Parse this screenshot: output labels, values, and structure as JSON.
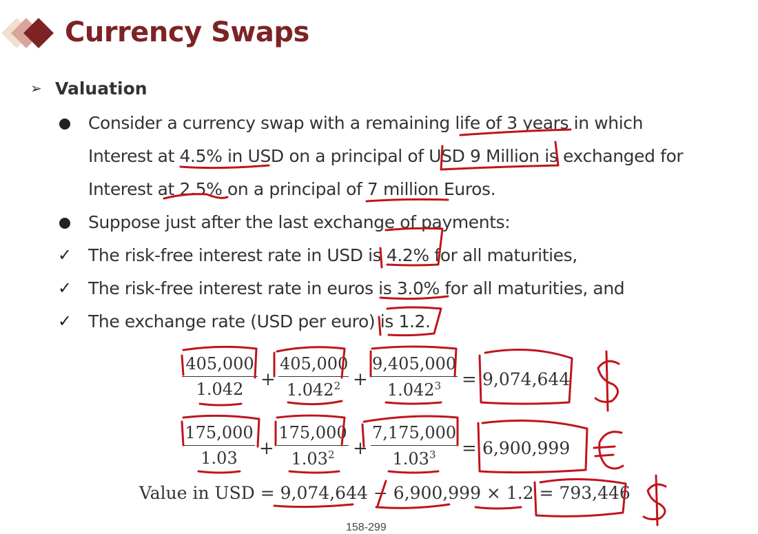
{
  "title": "Currency Swaps",
  "section": "Valuation",
  "lines": [
    "Consider a currency swap with a remaining life of 3 years in which",
    "Interest at 4.5% in USD on a principal of USD 9 Million is exchanged for",
    "Interest at 2.5% on a principal of 7 million Euros.",
    "Suppose just after the last exchange of payments:",
    "The risk-free interest rate in USD is 4.2% for all maturities,",
    "The risk-free interest rate in euros is 3.0% for all maturities, and",
    "The exchange rate (USD per euro) is 1.2."
  ],
  "usd_eq": {
    "n1": "405,000",
    "d1": "1.042",
    "n2": "405,000",
    "d2": "1.042",
    "e2": "2",
    "n3": "9,405,000",
    "d3": "1.042",
    "e3": "3",
    "result": "9,074,644"
  },
  "eur_eq": {
    "n1": "175,000",
    "d1": "1.03",
    "n2": "175,000",
    "d2": "1.03",
    "e2": "2",
    "n3": "7,175,000",
    "d3": "1.03",
    "e3": "3",
    "result": "6,900,999"
  },
  "value_eq": {
    "label": "Value in USD =",
    "a": "9,074,644",
    "minus": "−",
    "b": "6,900,999",
    "times": "× 1.2 =",
    "result": "793,446"
  },
  "ops": {
    "plus": "+",
    "equals": "="
  },
  "symbols": {
    "check": "✓",
    "arrow": "➢"
  },
  "handwritten": {
    "dollar": "$",
    "euro": "€"
  },
  "page_number": "158-299"
}
